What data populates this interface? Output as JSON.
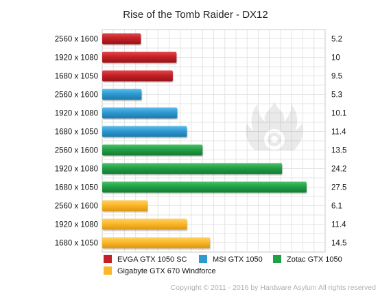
{
  "chart_data": {
    "type": "bar",
    "orientation": "horizontal",
    "title": "Rise of the Tomb Raider - DX12",
    "categories": [
      "2560 x 1600",
      "1920 x 1080",
      "1680 x 1050",
      "2560 x 1600",
      "1920 x 1080",
      "1680 x 1050",
      "2560 x 1600",
      "1920 x 1080",
      "1680 x 1050",
      "2560 x 1600",
      "1920 x 1080",
      "1680 x 1050"
    ],
    "values": [
      5.2,
      10,
      9.5,
      5.3,
      10.1,
      11.4,
      13.5,
      24.2,
      27.5,
      6.1,
      11.4,
      14.5
    ],
    "value_labels": [
      "5.2",
      "10",
      "9.5",
      "5.3",
      "10.1",
      "11.4",
      "13.5",
      "24.2",
      "27.5",
      "6.1",
      "11.4",
      "14.5"
    ],
    "bar_series": [
      0,
      0,
      0,
      1,
      1,
      1,
      2,
      2,
      2,
      3,
      3,
      3
    ],
    "series": [
      {
        "name": "EVGA GTX 1050 SC",
        "color": "#c42025"
      },
      {
        "name": "MSI GTX 1050",
        "color": "#2d9ad2"
      },
      {
        "name": "Zotac GTX 1050",
        "color": "#21a045"
      },
      {
        "name": "Gigabyte GTX 670 Windforce",
        "color": "#fbb829"
      }
    ],
    "xlim": [
      0,
      30
    ],
    "grid": true,
    "legend_position": "bottom"
  },
  "copyright": "Copyright © 2011 - 2016 by Hardware Asylum All rights reserved"
}
